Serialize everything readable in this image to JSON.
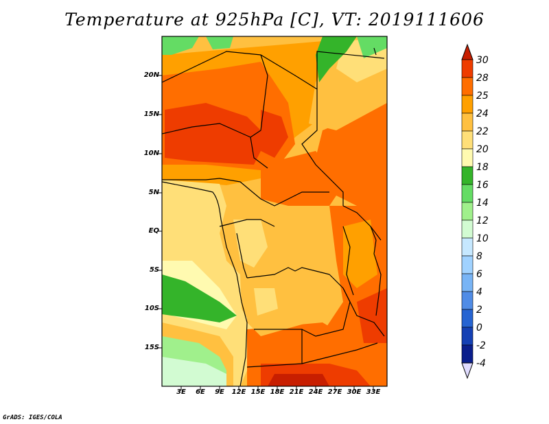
{
  "title": "Temperature at 925hPa [C], VT: 2019111606",
  "credit": "GrADS: IGES/COLA",
  "map": {
    "y_ticks": [
      "20N",
      "15N",
      "10N",
      "5N",
      "EQ",
      "5S",
      "10S",
      "15S"
    ],
    "x_ticks": [
      "3E",
      "6E",
      "9E",
      "12E",
      "15E",
      "18E",
      "21E",
      "24E",
      "27E",
      "30E",
      "33E"
    ]
  },
  "colorbar": {
    "labels": [
      "30",
      "28",
      "25",
      "24",
      "22",
      "20",
      "18",
      "16",
      "14",
      "12",
      "10",
      "8",
      "6",
      "4",
      "2",
      "0",
      "-2",
      "-4"
    ],
    "colors": [
      "#c81e00",
      "#ee3c00",
      "#ff6e00",
      "#ffa000",
      "#ffc040",
      "#ffdf78",
      "#fffab0",
      "#34b42a",
      "#64dc64",
      "#a0f08c",
      "#d2fbd2",
      "#c6e8ff",
      "#a0d2ff",
      "#78b4f5",
      "#508ce6",
      "#2664d2",
      "#1440b4",
      "#0a1e8c",
      "#000064"
    ],
    "top_arrow_color": "#c81e00",
    "bottom_arrow_color": "#e0dcff"
  }
}
